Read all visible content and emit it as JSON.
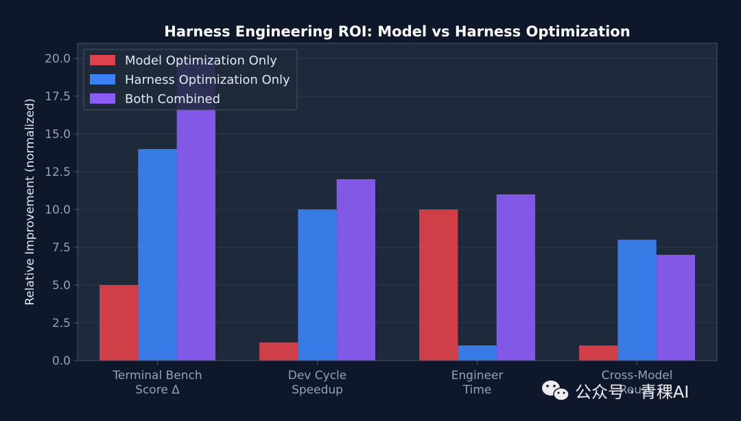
{
  "chart_data": {
    "type": "bar",
    "title": "Harness Engineering ROI: Model vs Harness Optimization",
    "xlabel": "",
    "ylabel": "Relative Improvement (normalized)",
    "categories": [
      [
        "Terminal Bench",
        "Score Δ"
      ],
      [
        "Dev Cycle",
        "Speedup"
      ],
      [
        "Engineer",
        "Time"
      ],
      [
        "Cross-Model",
        "Reuse"
      ]
    ],
    "series": [
      {
        "name": "Model Optimization Only",
        "color": "#e0414a",
        "values": [
          5,
          1.2,
          10,
          1
        ]
      },
      {
        "name": "Harness Optimization Only",
        "color": "#3b82f6",
        "values": [
          14,
          10,
          1,
          8
        ]
      },
      {
        "name": "Both Combined",
        "color": "#8b5cf6",
        "values": [
          20,
          12,
          11,
          7
        ]
      }
    ],
    "ylim": [
      0,
      21
    ],
    "yticks": [
      "0.0",
      "2.5",
      "5.0",
      "7.5",
      "10.0",
      "12.5",
      "15.0",
      "17.5",
      "20.0"
    ],
    "grid": "horizontal",
    "legend_position": "top-left"
  },
  "watermark": {
    "text": "公众号 · 青稞AI",
    "icon": "wechat-icon"
  },
  "colors": {
    "background": "#0f172a",
    "plot_background": "#1e293b",
    "axis": "#475569",
    "grid": "#334155"
  }
}
